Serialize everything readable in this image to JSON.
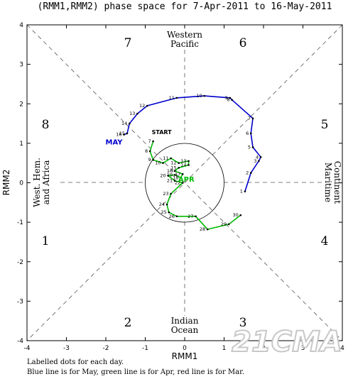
{
  "chart_data": {
    "type": "line",
    "title": "(RMM1,RMM2) phase space for  7-Apr-2011 to 16-May-2011",
    "xlabel": "RMM1",
    "ylabel": "RMM2",
    "xlim": [
      -4,
      4
    ],
    "ylim": [
      -4,
      4
    ],
    "xticks": [
      "-4",
      "-3",
      "-2",
      "-1",
      "0",
      "1",
      "2",
      "3",
      "4"
    ],
    "yticks": [
      "-4",
      "-3",
      "-2",
      "-1",
      "0",
      "1",
      "2",
      "3",
      "4"
    ],
    "phases": [
      "1",
      "2",
      "3",
      "4",
      "5",
      "6",
      "7",
      "8"
    ],
    "regions": {
      "top_line1": "Western",
      "top_line2": "Pacific",
      "bottom_line1": "Indian",
      "bottom_line2": "Ocean",
      "left_line1": "West. Hem.",
      "left_line2": "and Africa",
      "right_line1": "Maritime",
      "right_line2": "Continent"
    },
    "start_label": "START",
    "series": [
      {
        "name": "MAY",
        "color": "#0000cc",
        "labels": [
          "1",
          "2",
          "3",
          "4",
          "5",
          "6",
          "7",
          "8",
          "9",
          "10",
          "11",
          "12",
          "13",
          "14",
          "15",
          "16"
        ],
        "x": [
          1.53,
          1.68,
          1.88,
          1.93,
          1.73,
          1.68,
          1.73,
          1.2,
          1.15,
          0.5,
          -0.2,
          -0.95,
          -1.2,
          -1.4,
          -1.46,
          -1.54
        ],
        "y": [
          -0.22,
          0.25,
          0.55,
          0.65,
          0.9,
          1.25,
          1.63,
          2.1,
          2.15,
          2.2,
          2.15,
          1.95,
          1.75,
          1.5,
          1.25,
          1.22
        ]
      },
      {
        "name": "APR",
        "color": "#00bb00",
        "labels": [
          "7",
          "8",
          "9",
          "10",
          "11",
          "12",
          "13",
          "14",
          "15",
          "16",
          "17",
          "18",
          "19",
          "20",
          "21",
          "22",
          "23",
          "24",
          "25",
          "26",
          "27",
          "28",
          "29",
          "30"
        ],
        "x": [
          -0.8,
          -0.88,
          -0.8,
          -0.55,
          -0.35,
          -0.15,
          0.1,
          0.1,
          -0.15,
          -0.25,
          -0.05,
          -0.1,
          -0.25,
          -0.42,
          -0.25,
          -0.05,
          -0.35,
          -0.45,
          -0.4,
          -0.2,
          0.28,
          0.58,
          1.12,
          1.42
        ],
        "y": [
          1.05,
          0.8,
          0.58,
          0.5,
          0.62,
          0.5,
          0.55,
          0.45,
          0.38,
          0.3,
          0.22,
          0.13,
          0.2,
          0.18,
          0.05,
          0.0,
          -0.28,
          -0.55,
          -0.75,
          -0.85,
          -0.85,
          -1.18,
          -1.05,
          -0.82
        ]
      }
    ],
    "footnote_line1": "Labelled dots for each day.",
    "footnote_line2": "Blue line is for May, green line is for Apr, red line is for Mar."
  },
  "watermark": "21CMA"
}
